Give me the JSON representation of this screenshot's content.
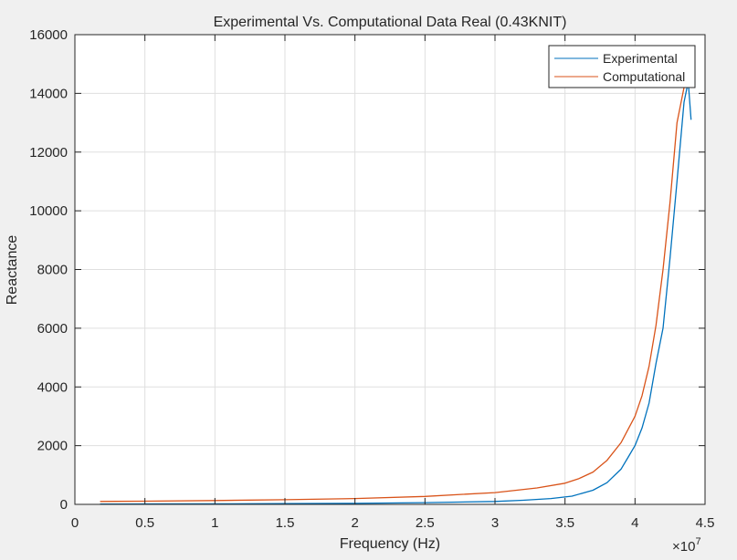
{
  "chart_data": {
    "type": "line",
    "title": "Experimental Vs. Computational Data Real (0.43KNIT)",
    "xlabel": "Frequency (Hz)",
    "ylabel": "Reactance",
    "x_exponent_label": "×10",
    "x_exponent_power": "7",
    "xlim": [
      0,
      4.5
    ],
    "ylim": [
      0,
      16000
    ],
    "xticks": [
      0,
      0.5,
      1,
      1.5,
      2,
      2.5,
      3,
      3.5,
      4,
      4.5
    ],
    "xtick_labels": [
      "0",
      "0.5",
      "1",
      "1.5",
      "2",
      "2.5",
      "3",
      "3.5",
      "4",
      "4.5"
    ],
    "yticks": [
      0,
      2000,
      4000,
      6000,
      8000,
      10000,
      12000,
      14000,
      16000
    ],
    "ytick_labels": [
      "0",
      "2000",
      "4000",
      "6000",
      "8000",
      "10000",
      "12000",
      "14000",
      "16000"
    ],
    "grid": true,
    "legend_position": "top-right",
    "series": [
      {
        "name": "Experimental",
        "color": "#0072BD",
        "x": [
          0.18,
          0.5,
          1.0,
          1.5,
          2.0,
          2.5,
          3.0,
          3.2,
          3.4,
          3.55,
          3.7,
          3.8,
          3.9,
          3.95,
          4.0,
          4.05,
          4.1,
          4.15,
          4.2,
          4.25,
          4.3,
          4.35,
          4.38,
          4.4
        ],
        "y": [
          10,
          15,
          20,
          25,
          35,
          60,
          100,
          140,
          200,
          280,
          480,
          740,
          1200,
          1600,
          2000,
          2600,
          3450,
          4800,
          6000,
          8400,
          11000,
          13700,
          14400,
          13100
        ]
      },
      {
        "name": "Computational",
        "color": "#D95319",
        "x": [
          0.18,
          0.5,
          1.0,
          1.5,
          2.0,
          2.5,
          3.0,
          3.3,
          3.5,
          3.6,
          3.7,
          3.8,
          3.9,
          4.0,
          4.05,
          4.1,
          4.15,
          4.2,
          4.25,
          4.3,
          4.35,
          4.37
        ],
        "y": [
          100,
          110,
          130,
          160,
          200,
          270,
          400,
          560,
          720,
          880,
          1100,
          1500,
          2100,
          3000,
          3700,
          4700,
          6100,
          8000,
          10300,
          13000,
          14200,
          14500
        ]
      }
    ]
  }
}
